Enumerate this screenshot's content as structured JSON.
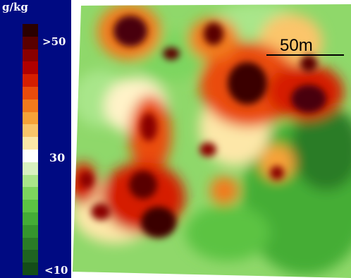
{
  "legend": {
    "unit": "g/kg",
    "max_label": ">50",
    "mid_label": "30",
    "min_label": "<10",
    "ramp_colors": [
      "#2a0000",
      "#5a0000",
      "#8a0000",
      "#b00000",
      "#d51e00",
      "#ea4b0c",
      "#f27a1c",
      "#f7a238",
      "#fbc56a",
      "#fde7a8",
      "#ffffff",
      "#d8f2c0",
      "#a9e68a",
      "#7dd55e",
      "#5cc343",
      "#44ad36",
      "#35952d",
      "#2a7c26",
      "#1f6420",
      "#144d18"
    ],
    "background": "#000a82"
  },
  "map": {
    "description_colors": {
      "high": "#4a0008",
      "mid": "#ffffff",
      "low": "#2f8f35"
    }
  },
  "scalebar": {
    "label": "50m"
  }
}
